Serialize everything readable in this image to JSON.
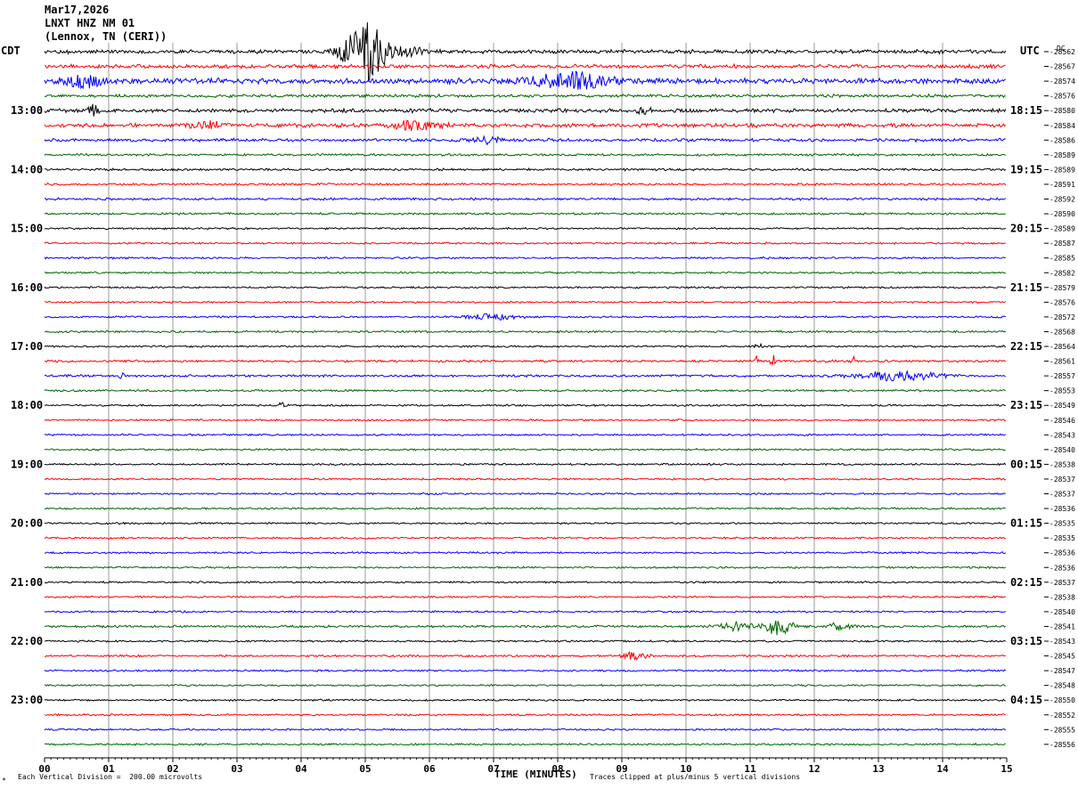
{
  "header": {
    "date": "Mar17,2026",
    "station": "LNXT HNZ NM 01",
    "location": "(Lennox, TN (CERI))",
    "left_tz": "CDT",
    "right_tz": "UTC",
    "dc_label": "DC"
  },
  "footer": {
    "xlabel": "TIME (MINUTES)",
    "scale_note": "Each Vertical Division =  200.00 microvolts",
    "clip_note": "Traces clipped at plus/minus 5 vertical divisions",
    "corner_mark": "*"
  },
  "chart_data": {
    "type": "line",
    "title": "LNXT HNZ NM 01",
    "xlabel": "TIME (MINUTES)",
    "xlim": [
      0,
      15
    ],
    "x_ticks": [
      "00",
      "01",
      "02",
      "03",
      "04",
      "05",
      "06",
      "07",
      "08",
      "09",
      "10",
      "11",
      "12",
      "13",
      "14",
      "15"
    ],
    "grid": true,
    "trace_colors": [
      "#000000",
      "#ff0000",
      "#0000ff",
      "#006400"
    ],
    "left_time_labels": [
      {
        "row": 4,
        "label": "13:00"
      },
      {
        "row": 8,
        "label": "14:00"
      },
      {
        "row": 12,
        "label": "15:00"
      },
      {
        "row": 16,
        "label": "16:00"
      },
      {
        "row": 20,
        "label": "17:00"
      },
      {
        "row": 24,
        "label": "18:00"
      },
      {
        "row": 28,
        "label": "19:00"
      },
      {
        "row": 32,
        "label": "20:00"
      },
      {
        "row": 36,
        "label": "21:00"
      },
      {
        "row": 40,
        "label": "22:00"
      },
      {
        "row": 44,
        "label": "23:00"
      }
    ],
    "right_time_labels": [
      {
        "row": 4,
        "label": "18:15"
      },
      {
        "row": 8,
        "label": "19:15"
      },
      {
        "row": 12,
        "label": "20:15"
      },
      {
        "row": 16,
        "label": "21:15"
      },
      {
        "row": 20,
        "label": "22:15"
      },
      {
        "row": 24,
        "label": "23:15"
      },
      {
        "row": 28,
        "label": "00:15"
      },
      {
        "row": 32,
        "label": "01:15"
      },
      {
        "row": 36,
        "label": "02:15"
      },
      {
        "row": 40,
        "label": "03:15"
      },
      {
        "row": 44,
        "label": "04:15"
      }
    ],
    "dc_offsets": [
      "-28562",
      "-28567",
      "-28574",
      "-28576",
      "-28580",
      "-28584",
      "-28586",
      "-28589",
      "-28589",
      "-28591",
      "-28592",
      "-28590",
      "-28589",
      "-28587",
      "-28585",
      "-28582",
      "-28579",
      "-28576",
      "-28572",
      "-28568",
      "-28564",
      "-28561",
      "-28557",
      "-28553",
      "-28549",
      "-28546",
      "-28543",
      "-28540",
      "-28538",
      "-28537",
      "-28537",
      "-28536",
      "-28535",
      "-28535",
      "-28536",
      "-28536",
      "-28537",
      "-28538",
      "-28540",
      "-28541",
      "-28543",
      "-28545",
      "-28547",
      "-28548",
      "-28550",
      "-28552",
      "-28555",
      "-28556"
    ],
    "trace_noise": [
      2.5,
      2.5,
      3.5,
      2,
      2.5,
      2.5,
      2,
      1.5,
      1.5,
      1.5,
      1.5,
      1.3,
      1.2,
      1.2,
      1.2,
      1.2,
      1.2,
      1.2,
      1.2,
      1.3,
      1.2,
      1.5,
      1.5,
      1.3,
      1.2,
      1.2,
      1.2,
      1.2,
      1.2,
      1.2,
      1.2,
      1.2,
      1.2,
      1.2,
      1.2,
      1.2,
      1.2,
      1.2,
      1.2,
      1.5,
      1.2,
      1.3,
      1.2,
      1.2,
      1.2,
      1.2,
      1.2,
      1.2
    ],
    "events": [
      {
        "row": 0,
        "minute": 5.0,
        "amplitude": 35,
        "duration": 0.5,
        "note": "clipped"
      },
      {
        "row": 0,
        "minute": 5.7,
        "amplitude": 4,
        "duration": 0.5
      },
      {
        "row": 2,
        "minute": 0.6,
        "amplitude": 6,
        "duration": 0.5
      },
      {
        "row": 2,
        "minute": 8.2,
        "amplitude": 9,
        "duration": 0.9
      },
      {
        "row": 4,
        "minute": 0.75,
        "amplitude": 7,
        "duration": 0.15
      },
      {
        "row": 4,
        "minute": 9.35,
        "amplitude": 6,
        "duration": 0.15
      },
      {
        "row": 5,
        "minute": 5.8,
        "amplitude": 5,
        "duration": 0.6
      },
      {
        "row": 5,
        "minute": 2.5,
        "amplitude": 4,
        "duration": 0.4
      },
      {
        "row": 6,
        "minute": 6.9,
        "amplitude": 4,
        "duration": 0.3
      },
      {
        "row": 18,
        "minute": 7.0,
        "amplitude": 3,
        "duration": 0.6
      },
      {
        "row": 20,
        "minute": 11.1,
        "amplitude": 3,
        "duration": 0.2
      },
      {
        "row": 21,
        "minute": 11.1,
        "amplitude": 10,
        "duration": 0.05
      },
      {
        "row": 21,
        "minute": 11.35,
        "amplitude": 11,
        "duration": 0.05
      },
      {
        "row": 21,
        "minute": 12.6,
        "amplitude": 6,
        "duration": 0.05
      },
      {
        "row": 22,
        "minute": 1.2,
        "amplitude": 5,
        "duration": 0.05
      },
      {
        "row": 22,
        "minute": 13.3,
        "amplitude": 5,
        "duration": 1.0
      },
      {
        "row": 24,
        "minute": 3.7,
        "amplitude": 3,
        "duration": 0.1
      },
      {
        "row": 39,
        "minute": 10.8,
        "amplitude": 5,
        "duration": 0.4
      },
      {
        "row": 39,
        "minute": 11.45,
        "amplitude": 10,
        "duration": 0.3
      },
      {
        "row": 39,
        "minute": 12.4,
        "amplitude": 4,
        "duration": 0.3
      },
      {
        "row": 41,
        "minute": 9.2,
        "amplitude": 4,
        "duration": 0.3
      }
    ]
  }
}
